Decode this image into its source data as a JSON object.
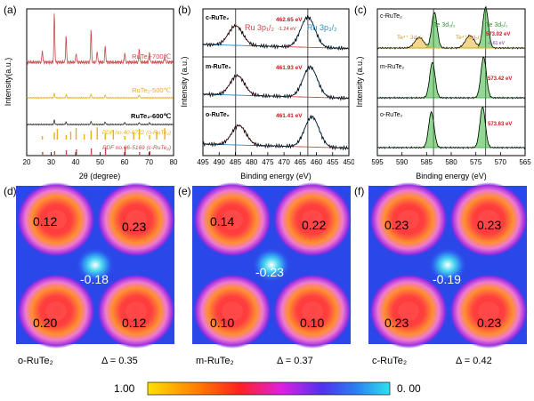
{
  "panels": {
    "a": {
      "label": "(a)",
      "xlabel": "2θ (degree)",
      "ylabel": "Intensity(a.u.)"
    },
    "b": {
      "label": "(b)",
      "xlabel": "Binding energy (eV)",
      "ylabel": "Intensity (a.u.)"
    },
    "c": {
      "label": "(c)",
      "xlabel": "Binding energy (eV)",
      "ylabel": "Intensity (a.u.)"
    },
    "d": {
      "label": "(d)",
      "material": "o-RuTe₂",
      "delta": "Δ = 0.35"
    },
    "e": {
      "label": "(e)",
      "material": "m-RuTe₂",
      "delta": "Δ = 0.37"
    },
    "f": {
      "label": "(f)",
      "material": "c-RuTe₂",
      "delta": "Δ = 0.42"
    }
  },
  "colorbar": {
    "max_label": "1.00",
    "min_label": "0. 00"
  },
  "chart_data": [
    {
      "type": "line",
      "panel": "a",
      "xlabel": "2θ (degree)",
      "ylabel": "Intensity(a.u.)",
      "xlim": [
        20,
        80
      ],
      "xticks": [
        20,
        30,
        40,
        50,
        60,
        70,
        80
      ],
      "series": [
        {
          "name": "RuTe₂-700℃",
          "color": "#c94a4a",
          "peaks_2theta": [
            26.4,
            31.3,
            36.1,
            40.2,
            46.3,
            48.8,
            52.1,
            60.1,
            66.0,
            70.2,
            76.4
          ]
        },
        {
          "name": "RuTe₂-500℃",
          "color": "#e8b020",
          "peaks_2theta": [
            31.3,
            36.2,
            46.3,
            52.1,
            66.0
          ]
        },
        {
          "name": "RuTe₂-600℃",
          "color": "#333333",
          "peaks_2theta": [
            31.3,
            36.1,
            46.3,
            52.1,
            60.1,
            66.0,
            70.2
          ]
        }
      ],
      "references": [
        {
          "name": "PDF no.40-6722 (o-RuTe₂)",
          "color": "#e8b020"
        },
        {
          "name": "PDF no.06-5169 (c-RuTe₂)",
          "color": "#c94a4a"
        }
      ]
    },
    {
      "type": "line",
      "panel": "b",
      "xlabel": "Binding energy (eV)",
      "ylabel": "Intensity (a.u.)",
      "xlim": [
        495,
        450
      ],
      "xticks": [
        495,
        490,
        485,
        480,
        475,
        470,
        465,
        460,
        455,
        450
      ],
      "peak_labels": [
        "Ru 3p₁/₂",
        "Ru 3p₃/₂"
      ],
      "series": [
        {
          "name": "c-RuTe₂",
          "peak_3p32_eV": 462.65,
          "peak_3p12_eV": 484.9,
          "annotation": "462.65 eV",
          "shift": "-1.24 eV"
        },
        {
          "name": "m-RuTe₂",
          "peak_3p32_eV": 461.93,
          "peak_3p12_eV": 484.4,
          "annotation": "461.93 eV"
        },
        {
          "name": "o-RuTe₂",
          "peak_3p32_eV": 461.41,
          "peak_3p12_eV": 483.9,
          "annotation": "461.41 eV"
        }
      ]
    },
    {
      "type": "line",
      "panel": "c",
      "xlabel": "Binding energy (eV)",
      "ylabel": "Intensity (a.u.)",
      "xlim": [
        595,
        565
      ],
      "xticks": [
        595,
        590,
        585,
        580,
        575,
        570,
        565
      ],
      "peak_labels": [
        "Te⁴⁺ 3d₃/₂",
        "Te 3d₃/₂",
        "Te⁴⁺ 3d₅/₂",
        "Te 3d₅/₂"
      ],
      "series": [
        {
          "name": "c-RuTe₂",
          "peak_te_3d52_eV": 573.02,
          "annotation": "573.02 eV",
          "shift": "-0.61 eV",
          "has_te4plus": true
        },
        {
          "name": "m-RuTe₂",
          "peak_te_3d52_eV": 573.42,
          "annotation": "573.42 eV",
          "has_te4plus": false
        },
        {
          "name": "o-RuTe₂",
          "peak_te_3d52_eV": 573.63,
          "annotation": "573.63 eV",
          "has_te4plus": false
        }
      ]
    },
    {
      "type": "heatmap",
      "panel": "d",
      "material": "o-RuTe₂",
      "delta": 0.35,
      "charges": {
        "top_left": "0.12",
        "top_right": "0.23",
        "center": "-0.18",
        "bottom_left": "0.20",
        "bottom_right": "0.12"
      }
    },
    {
      "type": "heatmap",
      "panel": "e",
      "material": "m-RuTe₂",
      "delta": 0.37,
      "charges": {
        "top_left": "0.14",
        "top_right": "0.22",
        "center": "-0.23",
        "bottom_left": "0.10",
        "bottom_right": "0.10"
      }
    },
    {
      "type": "heatmap",
      "panel": "f",
      "material": "c-RuTe₂",
      "delta": 0.42,
      "charges": {
        "top_left": "0.23",
        "top_right": "0.23",
        "center": "-0.19",
        "bottom_left": "0.23",
        "bottom_right": "0.23"
      }
    }
  ]
}
